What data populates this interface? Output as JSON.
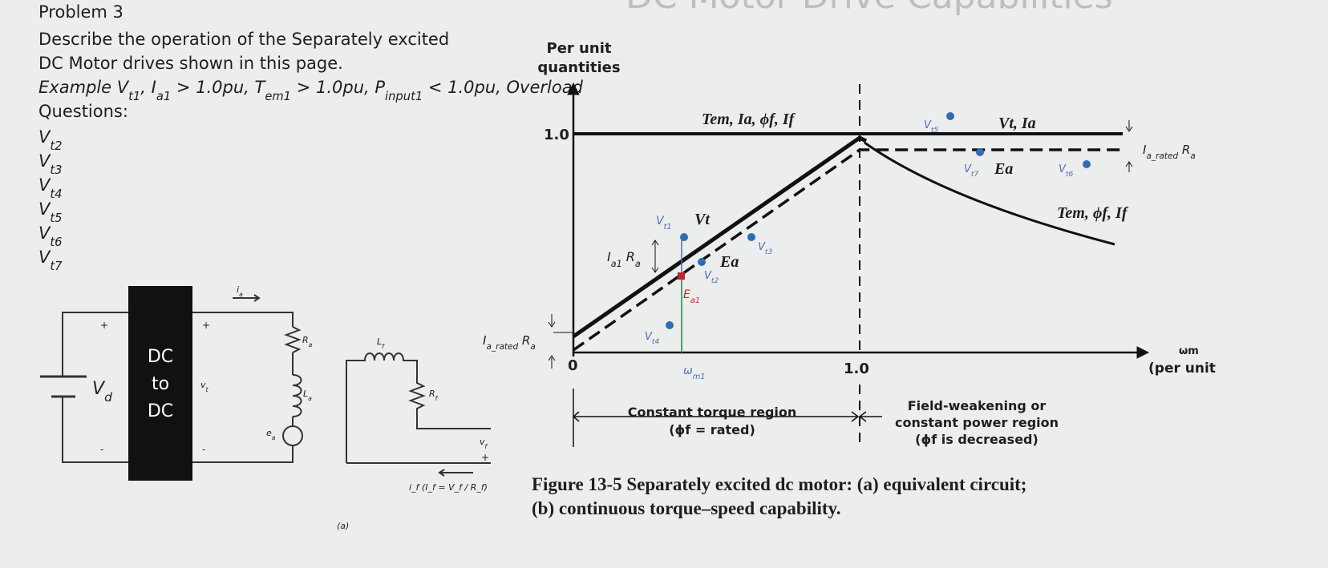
{
  "header": {
    "title": "DC Motor Drive Capabilities"
  },
  "problem": {
    "title": "Problem 3",
    "description": [
      "Describe the operation of the Separately excited",
      "DC Motor drives shown in this page."
    ],
    "example": [
      "Example V",
      "t1",
      ", I",
      "a1",
      " > 1.0pu, T",
      "em1",
      " > 1.0pu, P",
      "input1",
      " < 1.0pu, Overload"
    ],
    "questions_label": "Questions:",
    "questions": [
      [
        "V",
        "t2"
      ],
      [
        "V",
        "t3"
      ],
      [
        "V",
        "t4"
      ],
      [
        "V",
        "t5"
      ],
      [
        "V",
        "t6"
      ],
      [
        "V",
        "t7"
      ]
    ]
  },
  "circuit": {
    "converter": [
      "DC",
      "to",
      "DC"
    ],
    "source": [
      "V",
      "d"
    ],
    "armature_current": [
      "i",
      "a"
    ],
    "terminal_voltage": [
      "v",
      "t"
    ],
    "armature_resistance": [
      "R",
      "a"
    ],
    "armature_inductance": [
      "L",
      "a"
    ],
    "back_emf": [
      "e",
      "a"
    ],
    "field_inductance": [
      "L",
      "f"
    ],
    "field_resistance": [
      "R",
      "f"
    ],
    "field_voltage": [
      "v",
      "f"
    ],
    "field_current": "i_f (I_f = V_f / R_f)",
    "plus": "+",
    "minus": "-",
    "caption": "(a)"
  },
  "graph": {
    "y_axis_label": [
      "Per unit",
      "quantities"
    ],
    "y_one": "1.0",
    "origin": "0",
    "x_one": "1.0",
    "x_axis_label": [
      "ωm",
      "(per unit"
    ],
    "top_left_label": "Tem, Ia, ϕf, If",
    "top_right_label": "Vt, Ia",
    "ia_rated_ra_right": [
      "I",
      "a_rated",
      " R",
      "a"
    ],
    "ia_rated_ra_left": [
      "I",
      "a_rated",
      " R",
      "a"
    ],
    "ea_right": "Ea",
    "curve_label": "Tem, ϕf, If",
    "vt_label": "Vt",
    "ea_left": "Ea",
    "ia1_ra": [
      "I",
      "a1",
      " R",
      "a"
    ],
    "points": {
      "vt5": [
        "V",
        "t5"
      ],
      "vt7": [
        "V",
        "t7"
      ],
      "vt6": [
        "V",
        "t6"
      ],
      "vt1": [
        "V",
        "t1"
      ],
      "vt3": [
        "V",
        "t3"
      ],
      "vt2": [
        "V",
        "t2"
      ],
      "vt4": [
        "V",
        "t4"
      ],
      "ea1": [
        "E",
        "a1"
      ],
      "wm1": [
        "ω",
        "m1"
      ]
    },
    "region_left": [
      "Constant torque region",
      "(ϕf = rated)"
    ],
    "region_right": [
      "Field-weakening or",
      "constant power region",
      "(ϕf is decreased)"
    ]
  },
  "figure_caption": [
    "Figure 13-5   Separately excited dc motor: (a) equivalent circuit;",
    "(b) continuous torque–speed capability."
  ]
}
